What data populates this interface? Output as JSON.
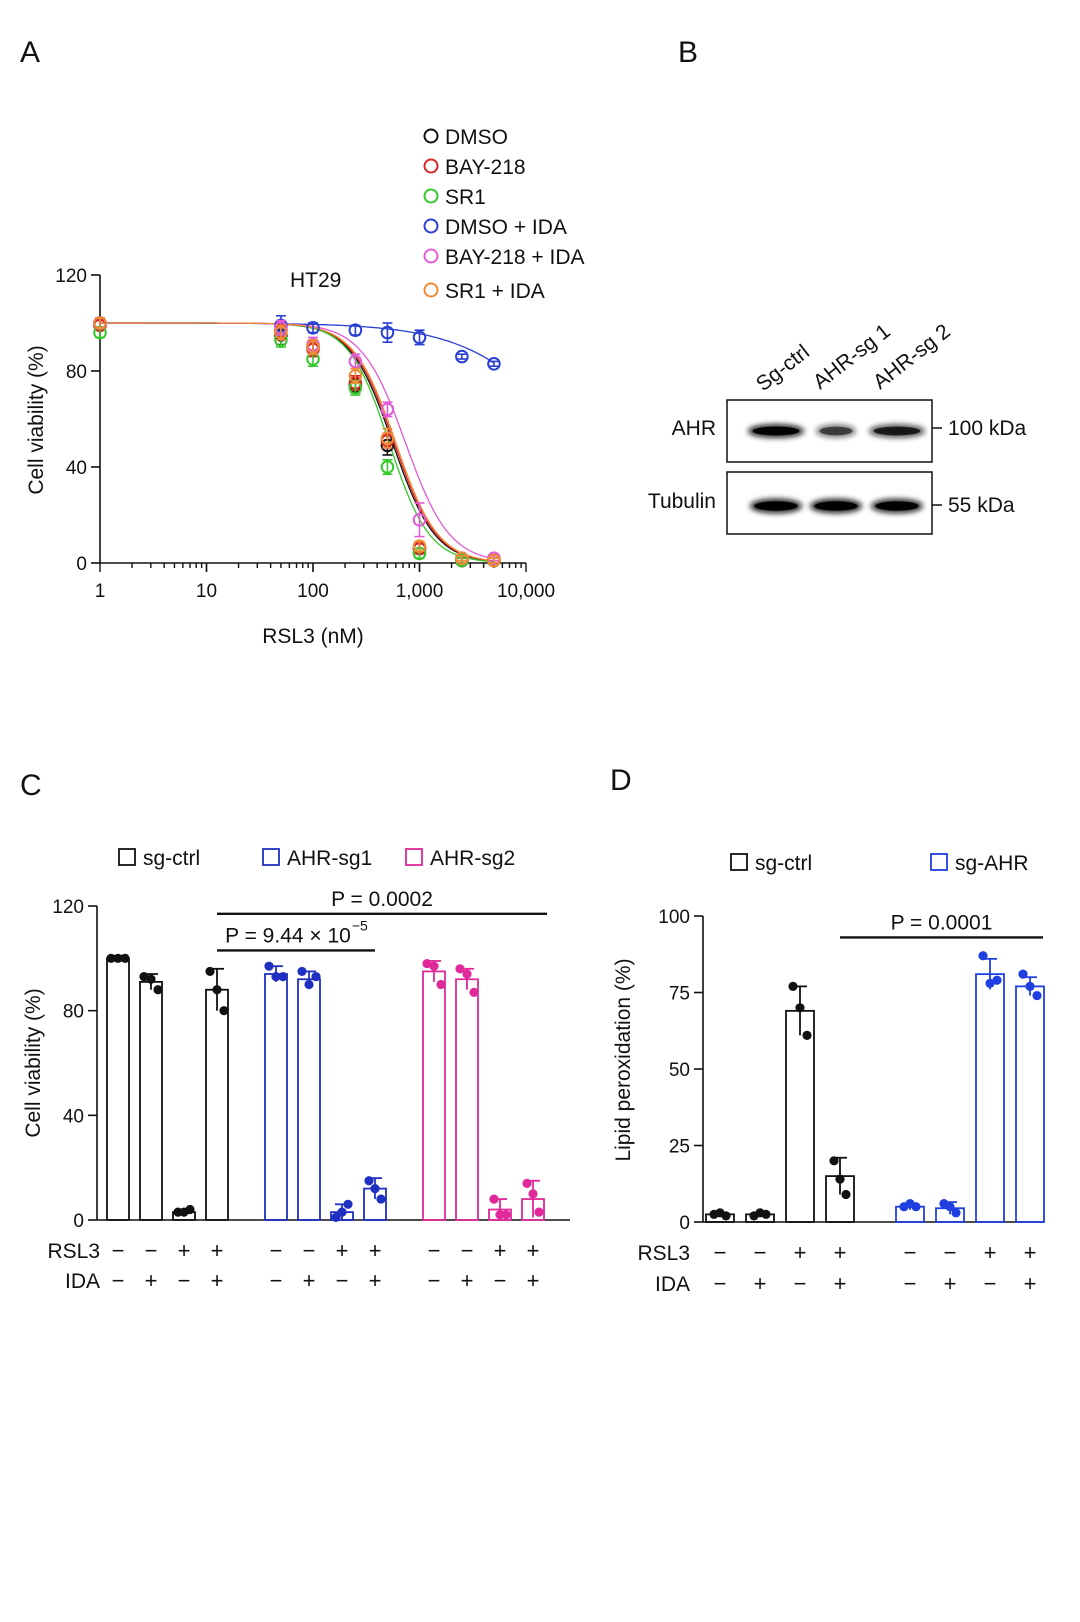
{
  "panels": {
    "a": "A",
    "b": "B",
    "c": "C",
    "d": "D"
  },
  "colors": {
    "black": "#111111",
    "red": "#d62728",
    "green": "#35c92b",
    "blue": "#2b3fd3",
    "pink": "#e25bd6",
    "orange": "#f08a34",
    "blueC": "#1f2fc0",
    "magentaC": "#e0299b",
    "blueD": "#1f3fe0"
  },
  "panel_b": {
    "lanes": [
      "Sg-ctrl",
      "AHR-sg 1",
      "AHR-sg 2"
    ],
    "rows": [
      {
        "label": "AHR",
        "marker": "100 kDa",
        "band_intensity": [
          1.0,
          0.45,
          0.7
        ]
      },
      {
        "label": "Tubulin",
        "marker": "55 kDa",
        "band_intensity": [
          1.0,
          1.0,
          0.95
        ]
      }
    ]
  },
  "chart_data": [
    {
      "id": "A",
      "type": "scatter",
      "title": "HT29",
      "xlabel": "RSL3 (nM)",
      "ylabel": "Cell viability (%)",
      "xscale": "log",
      "xlim": [
        1,
        10000
      ],
      "ylim": [
        0,
        120
      ],
      "x_ticks": [
        1,
        10,
        100,
        1000,
        10000
      ],
      "x_tick_labels": [
        "1",
        "10",
        "100",
        "1,000",
        "10,000"
      ],
      "y_ticks": [
        0,
        40,
        80,
        120
      ],
      "y_tick_labels": [
        "0",
        "40",
        "80",
        "120"
      ],
      "legend_position": "top-right",
      "series": [
        {
          "name": "DMSO",
          "color": "#111111",
          "ic50": 560,
          "hill": 2.2,
          "x": [
            1,
            50,
            100,
            250,
            500,
            1000,
            2500,
            5000
          ],
          "y": [
            100,
            95,
            90,
            74,
            49,
            6,
            1,
            1
          ],
          "err": [
            2,
            4,
            3,
            3,
            4,
            2,
            1,
            1
          ]
        },
        {
          "name": "BAY-218",
          "color": "#d62728",
          "ic50": 580,
          "hill": 2.2,
          "x": [
            1,
            50,
            100,
            250,
            500,
            1000,
            2500,
            5000
          ],
          "y": [
            99,
            97,
            89,
            75,
            51,
            6,
            1,
            1
          ],
          "err": [
            2,
            3,
            3,
            3,
            3,
            2,
            1,
            1
          ]
        },
        {
          "name": "SR1",
          "color": "#35c92b",
          "ic50": 520,
          "hill": 2.3,
          "x": [
            1,
            50,
            100,
            250,
            500,
            1000,
            2500,
            5000
          ],
          "y": [
            96,
            93,
            85,
            73,
            40,
            4,
            1,
            1
          ],
          "err": [
            2,
            3,
            3,
            3,
            3,
            2,
            1,
            1
          ]
        },
        {
          "name": "DMSO + IDA",
          "color": "#2b3fd3",
          "ic50": 30000,
          "hill": 0.9,
          "x": [
            1,
            50,
            100,
            250,
            500,
            1000,
            2500,
            5000
          ],
          "y": [
            100,
            99,
            98,
            97,
            96,
            94,
            86,
            83
          ],
          "err": [
            2,
            4,
            2,
            2,
            4,
            3,
            1,
            1
          ]
        },
        {
          "name": "BAY-218 + IDA",
          "color": "#e25bd6",
          "ic50": 740,
          "hill": 2.1,
          "x": [
            1,
            50,
            100,
            250,
            500,
            1000,
            2500,
            5000
          ],
          "y": [
            100,
            98,
            91,
            84,
            64,
            18,
            2,
            2
          ],
          "err": [
            2,
            3,
            3,
            3,
            3,
            7,
            1,
            1
          ]
        },
        {
          "name": "SR1 + IDA",
          "color": "#f08a34",
          "ic50": 600,
          "hill": 2.2,
          "x": [
            1,
            50,
            100,
            250,
            500,
            1000,
            2500,
            5000
          ],
          "y": [
            100,
            96,
            90,
            78,
            52,
            7,
            2,
            1
          ],
          "err": [
            2,
            3,
            3,
            3,
            4,
            2,
            1,
            1
          ]
        }
      ]
    },
    {
      "id": "C",
      "type": "bar",
      "ylabel": "Cell viability (%)",
      "ylim": [
        0,
        120
      ],
      "y_ticks": [
        0,
        40,
        80,
        120
      ],
      "y_tick_labels": [
        "0",
        "40",
        "80",
        "120"
      ],
      "legend_position": "top",
      "row_labels": [
        "RSL3",
        "IDA"
      ],
      "minus_sign": "−",
      "plus_sign": "+",
      "series": [
        {
          "name": "sg-ctrl",
          "color": "#111111",
          "values": [
            100,
            91,
            3,
            88
          ],
          "err": [
            1,
            3,
            1,
            8
          ],
          "points": [
            [
              100,
              100,
              100
            ],
            [
              93,
              92,
              88
            ],
            [
              3,
              3,
              4
            ],
            [
              95,
              88,
              80
            ]
          ]
        },
        {
          "name": "AHR-sg1",
          "color": "#1f2fc0",
          "values": [
            94,
            92,
            3,
            12
          ],
          "err": [
            3,
            3,
            3,
            4
          ],
          "points": [
            [
              97,
              93,
              93
            ],
            [
              95,
              90,
              93
            ],
            [
              1,
              3,
              6
            ],
            [
              15,
              12,
              8
            ]
          ]
        },
        {
          "name": "AHR-sg2",
          "color": "#e0299b",
          "values": [
            95,
            92,
            4,
            8
          ],
          "err": [
            4,
            4,
            4,
            7
          ],
          "points": [
            [
              98,
              97,
              90
            ],
            [
              96,
              94,
              87
            ],
            [
              8,
              2,
              2
            ],
            [
              14,
              10,
              3
            ]
          ]
        }
      ],
      "conditions": [
        {
          "rsl3": "−",
          "ida": "−"
        },
        {
          "rsl3": "−",
          "ida": "+"
        },
        {
          "rsl3": "+",
          "ida": "−"
        },
        {
          "rsl3": "+",
          "ida": "+"
        }
      ],
      "annotations": [
        {
          "text": "P = 0.0002",
          "from_bar": 3,
          "to_bar": 11,
          "y": 117
        },
        {
          "text": "P = 9.44 × 10",
          "exponent": "−5",
          "from_bar": 3,
          "to_bar": 7,
          "y": 103
        }
      ]
    },
    {
      "id": "D",
      "type": "bar",
      "ylabel": "Lipid peroxidation (%)",
      "ylim": [
        0,
        100
      ],
      "y_ticks": [
        0,
        25,
        50,
        75,
        100
      ],
      "y_tick_labels": [
        "0",
        "25",
        "50",
        "75",
        "100"
      ],
      "legend_position": "top",
      "row_labels": [
        "RSL3",
        "IDA"
      ],
      "minus_sign": "−",
      "plus_sign": "+",
      "series": [
        {
          "name": "sg-ctrl",
          "color": "#111111",
          "values": [
            2.5,
            2.5,
            69,
            15
          ],
          "err": [
            0.5,
            0.5,
            8,
            6
          ],
          "points": [
            [
              2.5,
              3,
              2
            ],
            [
              2,
              3,
              2.5
            ],
            [
              77,
              70,
              61
            ],
            [
              20,
              14,
              9
            ]
          ]
        },
        {
          "name": "sg-AHR",
          "color": "#1f3fe0",
          "values": [
            5,
            4.5,
            81,
            77
          ],
          "err": [
            1,
            2,
            5,
            3
          ],
          "points": [
            [
              5,
              6,
              5
            ],
            [
              6,
              5,
              3
            ],
            [
              87,
              78,
              79
            ],
            [
              81,
              77,
              74
            ]
          ]
        }
      ],
      "conditions": [
        {
          "rsl3": "−",
          "ida": "−"
        },
        {
          "rsl3": "−",
          "ida": "+"
        },
        {
          "rsl3": "+",
          "ida": "−"
        },
        {
          "rsl3": "+",
          "ida": "+"
        }
      ],
      "annotations": [
        {
          "text": "P = 0.0001",
          "from_bar": 3,
          "to_bar": 7,
          "y": 93
        }
      ]
    }
  ]
}
